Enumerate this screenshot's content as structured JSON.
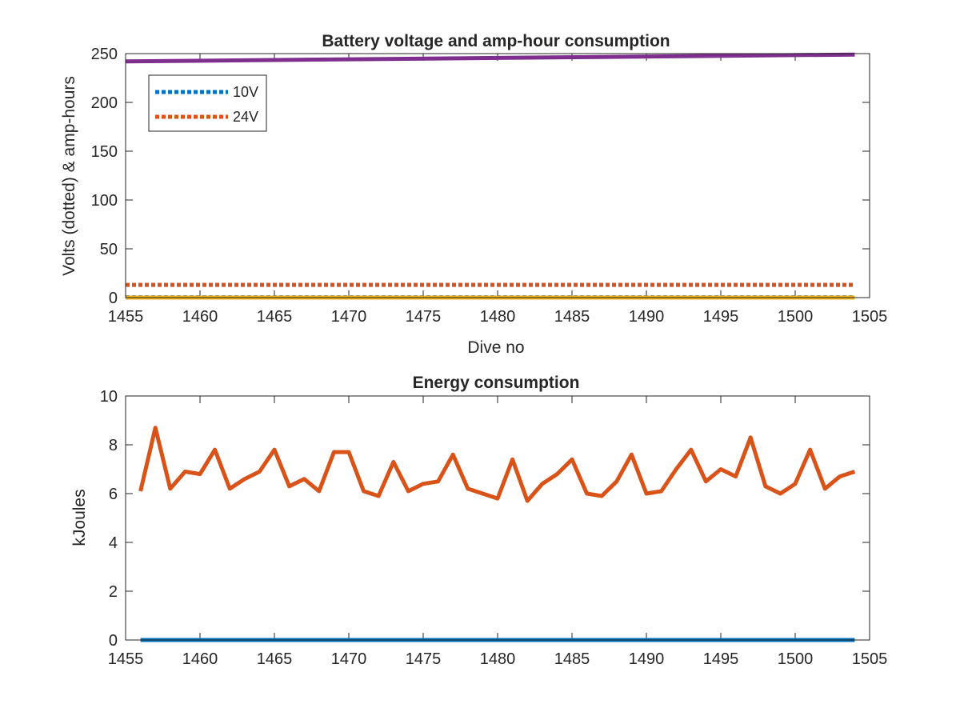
{
  "chart_data": [
    {
      "type": "line",
      "title": "Battery voltage and amp-hour consumption",
      "xlabel": "Dive no",
      "ylabel": "Volts (dotted) & amp-hours",
      "xlim": [
        1455,
        1505
      ],
      "ylim": [
        0,
        250
      ],
      "xticks": [
        1455,
        1460,
        1465,
        1470,
        1475,
        1480,
        1485,
        1490,
        1495,
        1500,
        1505
      ],
      "yticks": [
        0,
        50,
        100,
        150,
        200,
        250
      ],
      "grid": false,
      "legend_placement": "top-left",
      "series": [
        {
          "name": "10V",
          "style": "dotted",
          "color": "#0072BD",
          "x": [
            1455,
            1504
          ],
          "y": [
            0.3,
            0.3
          ]
        },
        {
          "name": "24V",
          "style": "dotted",
          "color": "#D95319",
          "x": [
            1455,
            1504
          ],
          "y": [
            13,
            13
          ]
        },
        {
          "style": "solid",
          "color": "#EDB120",
          "x": [
            1455,
            1504
          ],
          "y": [
            0,
            0
          ]
        },
        {
          "style": "solid",
          "color": "#7E2F8E",
          "x": [
            1455,
            1504
          ],
          "y": [
            242,
            249
          ]
        }
      ]
    },
    {
      "type": "line",
      "title": "Energy consumption",
      "xlabel": "",
      "ylabel": "kJoules",
      "xlim": [
        1455,
        1505
      ],
      "ylim": [
        0,
        10
      ],
      "xticks": [
        1455,
        1460,
        1465,
        1470,
        1475,
        1480,
        1485,
        1490,
        1495,
        1500,
        1505
      ],
      "yticks": [
        0,
        2,
        4,
        6,
        8,
        10
      ],
      "grid": false,
      "series": [
        {
          "style": "solid",
          "color": "#D95319",
          "x": [
            1456,
            1457,
            1458,
            1459,
            1460,
            1461,
            1462,
            1463,
            1464,
            1465,
            1466,
            1467,
            1468,
            1469,
            1470,
            1471,
            1472,
            1473,
            1474,
            1475,
            1476,
            1477,
            1478,
            1479,
            1480,
            1481,
            1482,
            1483,
            1484,
            1485,
            1486,
            1487,
            1488,
            1489,
            1490,
            1491,
            1492,
            1493,
            1494,
            1495,
            1496,
            1497,
            1498,
            1499,
            1500,
            1501,
            1502,
            1503,
            1504
          ],
          "y": [
            6.1,
            8.7,
            6.2,
            6.9,
            6.8,
            7.8,
            6.2,
            6.6,
            6.9,
            7.8,
            6.3,
            6.6,
            6.1,
            7.7,
            7.7,
            6.1,
            5.9,
            7.3,
            6.1,
            6.4,
            6.5,
            7.6,
            6.2,
            6.0,
            5.8,
            7.4,
            5.7,
            6.4,
            6.8,
            7.4,
            6.0,
            5.9,
            6.5,
            7.6,
            6.0,
            6.1,
            7.0,
            7.8,
            6.5,
            7.0,
            6.7,
            8.3,
            6.3,
            6.0,
            6.4,
            7.8,
            6.2,
            6.7,
            6.9
          ]
        },
        {
          "style": "solid",
          "color": "#0072BD",
          "x": [
            1456,
            1504
          ],
          "y": [
            0,
            0
          ]
        }
      ]
    }
  ]
}
